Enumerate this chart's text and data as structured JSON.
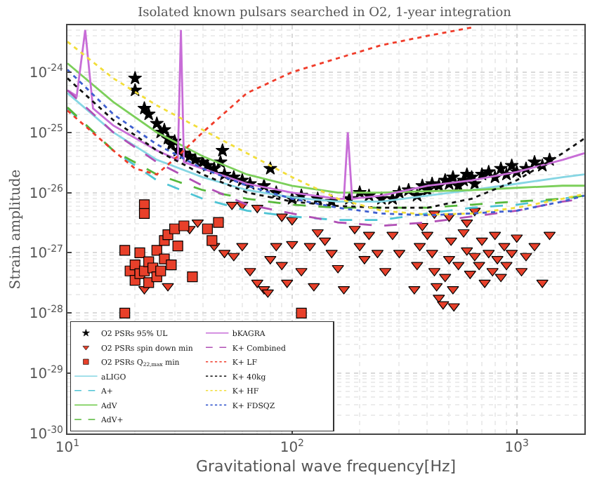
{
  "chart_data": {
    "type": "line",
    "title": "Isolated known pulsars searched in O2, 1-year integration",
    "xlabel": "Gravitational wave frequency[Hz]",
    "ylabel": "Strain amplitude",
    "log": "xy",
    "grid": true,
    "legend": "bottom left",
    "xlim": [
      10,
      2000
    ],
    "xticks": [
      {
        "value": 10,
        "label": "10$^{1}$"
      },
      {
        "value": 100,
        "label": "10$^{2}$"
      },
      {
        "value": 1000,
        "label": "10$^{3}$"
      }
    ],
    "ylim": [
      1e-30,
      6e-24
    ],
    "yticks": [
      {
        "value": 1e-30,
        "label": "10$^{-30}$"
      },
      {
        "value": 1e-29,
        "label": "10$^{-29}$"
      },
      {
        "value": 1e-28,
        "label": "10$^{-28}$"
      },
      {
        "value": 1e-27,
        "label": "10$^{-27}$"
      },
      {
        "value": 1e-26,
        "label": "10$^{-26}$"
      },
      {
        "value": 1e-25,
        "label": "10$^{-25}$"
      },
      {
        "value": 1e-24,
        "label": "10$^{-24}$"
      }
    ],
    "series": [
      {
        "name": "O2 PSRs 95% UL",
        "type": "scatter",
        "marker": "star",
        "color": "#000000",
        "x": [
          20,
          20,
          22,
          23,
          25,
          26,
          27,
          28,
          29,
          30,
          31,
          33,
          35,
          37,
          40,
          42,
          45,
          48,
          49,
          50,
          55,
          60,
          65,
          75,
          80,
          85,
          100,
          110,
          130,
          150,
          180,
          200,
          220,
          250,
          280,
          300,
          330,
          360,
          380,
          400,
          420,
          450,
          480,
          500,
          520,
          550,
          580,
          600,
          630,
          650,
          700,
          750,
          800,
          850,
          900,
          950,
          1000,
          1100,
          1200,
          1300,
          1400
        ],
        "values": [
          7.9e-25,
          5e-25,
          2.5e-25,
          2e-25,
          1.4e-25,
          1e-25,
          1.1e-25,
          7.9e-26,
          6.3e-26,
          7.1e-26,
          5e-26,
          4.5e-26,
          4e-26,
          3.5e-26,
          3.2e-26,
          2.8e-26,
          2.5e-26,
          3.2e-26,
          5e-26,
          2e-26,
          1.8e-26,
          1.6e-26,
          1.4e-26,
          1.3e-26,
          2.5e-26,
          1e-26,
          7.9e-27,
          8.9e-27,
          7.9e-27,
          7.1e-27,
          7.9e-27,
          1e-26,
          8.9e-27,
          7.9e-27,
          7.9e-27,
          1e-26,
          1.1e-26,
          8.9e-27,
          1.3e-26,
          1.1e-26,
          1.4e-26,
          1.3e-26,
          1.6e-26,
          1.4e-26,
          1.8e-26,
          1.3e-26,
          1.6e-26,
          2e-26,
          1.8e-26,
          1.4e-26,
          2e-26,
          2.2e-26,
          1.8e-26,
          2.5e-26,
          2e-26,
          2.8e-26,
          2.2e-26,
          2.5e-26,
          3.2e-26,
          2.8e-26,
          3.5e-26
        ]
      },
      {
        "name": "O2 PSRs spin down min",
        "type": "scatter",
        "marker": "triangle",
        "color": "#e8402a",
        "x": [
          22,
          28,
          35,
          38,
          45,
          50,
          54,
          55,
          60,
          60,
          65,
          70,
          70,
          75,
          78,
          80,
          85,
          90,
          90,
          95,
          100,
          100,
          110,
          120,
          125,
          130,
          140,
          150,
          160,
          170,
          190,
          200,
          210,
          220,
          240,
          260,
          280,
          300,
          350,
          360,
          370,
          380,
          400,
          420,
          430,
          430,
          440,
          450,
          470,
          480,
          500,
          500,
          510,
          520,
          525,
          550,
          580,
          600,
          600,
          620,
          650,
          650,
          680,
          700,
          720,
          750,
          780,
          800,
          820,
          850,
          880,
          900,
          950,
          1000,
          1050,
          1100,
          1200,
          1300,
          1400
        ],
        "values": [
          2.5e-28,
          2.8e-28,
          2.5e-27,
          3.2e-27,
          1.3e-27,
          1e-27,
          6.3e-27,
          8.9e-28,
          6.3e-27,
          1.3e-27,
          5e-28,
          5.6e-27,
          3.2e-28,
          2.5e-28,
          2.2e-28,
          7.9e-28,
          1.3e-27,
          4e-27,
          6.3e-28,
          3.2e-28,
          1.4e-27,
          3.5e-27,
          5e-28,
          1.3e-27,
          2.8e-28,
          2.2e-27,
          1.6e-27,
          1e-27,
          5.6e-28,
          2.5e-28,
          2.5e-27,
          1.3e-27,
          7.9e-28,
          2e-27,
          1e-27,
          5e-28,
          2e-27,
          1e-27,
          2.5e-28,
          6.3e-28,
          1.3e-27,
          2.8e-27,
          2e-27,
          1e-27,
          5e-28,
          4.5e-27,
          2.8e-28,
          1.8e-28,
          1.4e-28,
          4e-28,
          7.9e-28,
          4e-27,
          1.6e-27,
          2.5e-28,
          1.3e-28,
          6.3e-28,
          2.2e-27,
          1.1e-27,
          3.2e-27,
          4.5e-28,
          8.9e-28,
          5e-27,
          6.3e-28,
          1.6e-27,
          3.2e-28,
          1e-27,
          5e-28,
          2e-27,
          7.9e-28,
          4e-28,
          1.3e-27,
          6.3e-28,
          1e-27,
          1.8e-27,
          5e-28,
          8.9e-28,
          1.3e-27,
          3.2e-28,
          2e-27
        ]
      },
      {
        "name": "O2 PSRs Q$_{22,max}$ min",
        "type": "scatter",
        "marker": "square",
        "color": "#e8402a",
        "x": [
          18,
          18,
          19,
          20,
          20,
          21,
          21,
          22,
          22,
          22,
          23,
          23,
          24,
          25,
          25,
          26,
          27,
          27,
          28,
          29,
          30,
          31,
          33,
          36,
          42,
          44,
          47,
          110
        ],
        "values": [
          1.1e-27,
          1e-28,
          5e-28,
          6.3e-28,
          3.5e-28,
          1e-27,
          4.5e-28,
          6.3e-27,
          4.5e-27,
          5e-28,
          7.1e-28,
          3.2e-28,
          5.6e-28,
          4e-28,
          1.1e-27,
          5e-28,
          1.6e-27,
          7.9e-28,
          2e-27,
          6.3e-28,
          2.5e-27,
          1.3e-27,
          2.8e-27,
          4e-28,
          2.5e-27,
          1.6e-27,
          3.2e-27,
          1e-28
        ]
      },
      {
        "name": "aLIGO",
        "line_style": "solid",
        "color": "#86d6e3",
        "x": [
          10,
          16,
          25,
          40,
          63,
          100,
          160,
          250,
          400,
          630,
          1000,
          1600,
          2000
        ],
        "values": [
          4.5e-25,
          1e-25,
          3.5e-26,
          1.8e-26,
          1.1e-26,
          8.3e-27,
          7.1e-27,
          7.1e-27,
          8.9e-27,
          1.1e-26,
          1.4e-26,
          1.8e-26,
          2e-26
        ]
      },
      {
        "name": "A+",
        "line_style": "dashed",
        "color": "#4ec4d4",
        "x": [
          10,
          16,
          25,
          40,
          63,
          100,
          160,
          250,
          400,
          630,
          1000,
          1600,
          2000
        ],
        "values": [
          2.5e-25,
          5e-26,
          1.6e-26,
          7.9e-27,
          5e-27,
          4e-27,
          3.5e-27,
          3.5e-27,
          4.5e-27,
          5.6e-27,
          6.3e-27,
          7.9e-27,
          8.9e-27
        ]
      },
      {
        "name": "AdV",
        "line_style": "solid",
        "color": "#7ccf5a",
        "x": [
          10,
          16,
          25,
          40,
          63,
          100,
          160,
          250,
          400,
          630,
          1000,
          1600,
          2000
        ],
        "values": [
          1.4e-24,
          3.2e-25,
          1e-25,
          4e-26,
          2e-26,
          1.3e-26,
          1e-26,
          1e-26,
          1.05e-26,
          1.1e-26,
          1.2e-26,
          1.3e-26,
          1.3e-26
        ]
      },
      {
        "name": "AdV+",
        "line_style": "dashed",
        "color": "#56b83a",
        "x": [
          10,
          16,
          25,
          40,
          63,
          100,
          160,
          250,
          400,
          630,
          1000,
          1600,
          2000
        ],
        "values": [
          2.6e-25,
          5e-26,
          2e-26,
          1.1e-26,
          7.9e-27,
          6.3e-27,
          5.6e-27,
          5.6e-27,
          5.6e-27,
          6.3e-27,
          7.1e-27,
          7.9e-27,
          8.9e-27
        ]
      },
      {
        "name": "bKAGRA",
        "line_style": "solid",
        "color": "#c86dd7",
        "x": [
          10,
          11,
          12,
          13,
          16,
          25,
          31,
          32,
          33,
          40,
          63,
          100,
          160,
          170,
          177,
          185,
          250,
          400,
          630,
          1000,
          1600,
          2000
        ],
        "values": [
          5e-25,
          4e-25,
          5e-24,
          2.5e-25,
          1.3e-25,
          5e-26,
          3.5e-26,
          5e-24,
          3.2e-26,
          2.5e-26,
          1.4e-26,
          1e-26,
          7.9e-27,
          7.9e-27,
          1e-25,
          7.9e-27,
          8.9e-27,
          1.3e-26,
          1.6e-26,
          2.2e-26,
          3.5e-26,
          4.5e-26
        ]
      },
      {
        "name": "K+ Combined",
        "line_style": "dashed",
        "color": "#b04fb5",
        "x": [
          10,
          16,
          25,
          40,
          63,
          100,
          160,
          250,
          400,
          630,
          1000,
          1600,
          2000
        ],
        "values": [
          5e-25,
          1e-25,
          3.2e-26,
          1.3e-26,
          6.3e-27,
          4.5e-27,
          3.2e-27,
          2.8e-27,
          3.2e-27,
          4e-27,
          5e-27,
          7.1e-27,
          7.9e-27
        ]
      },
      {
        "name": "K+ LF",
        "line_style": "dotted",
        "color": "#f03c2a",
        "x": [
          10,
          16,
          20,
          25,
          32,
          40,
          63,
          100,
          160,
          250,
          400,
          630
        ],
        "values": [
          2.3e-25,
          5e-26,
          2.5e-26,
          2e-26,
          4.5e-26,
          1e-25,
          4.5e-25,
          1e-24,
          1.7e-24,
          2.8e-24,
          4e-24,
          5.5e-24
        ]
      },
      {
        "name": "K+ 40kg",
        "line_style": "dotted",
        "color": "#111111",
        "x": [
          10,
          16,
          25,
          40,
          63,
          100,
          160,
          250,
          400,
          630,
          1000,
          1600,
          2000
        ],
        "values": [
          7.9e-25,
          1.6e-25,
          5e-26,
          2e-26,
          1e-26,
          7.1e-27,
          6e-27,
          5.6e-27,
          5.6e-27,
          7.9e-27,
          1.6e-26,
          4.5e-26,
          7.9e-26
        ]
      },
      {
        "name": "K+ HF",
        "line_style": "dotted",
        "color": "#f2de3a",
        "x": [
          10,
          16,
          25,
          40,
          63,
          100,
          160,
          250,
          400,
          630,
          1000,
          1600,
          2000
        ],
        "values": [
          3.2e-24,
          7.9e-25,
          2.8e-25,
          1.1e-25,
          4.5e-26,
          1.8e-26,
          7.9e-27,
          5e-27,
          4.3e-27,
          4.5e-27,
          5.6e-27,
          7.9e-27,
          9.5e-27
        ]
      },
      {
        "name": "K+ FDSQZ",
        "line_style": "dotted",
        "color": "#3f5fd0",
        "x": [
          10,
          16,
          25,
          40,
          63,
          100,
          160,
          250,
          400,
          630,
          1000,
          1600,
          2000
        ],
        "values": [
          1.1e-24,
          2e-25,
          6.3e-26,
          2.5e-26,
          1.3e-26,
          7.9e-27,
          5.6e-27,
          4.5e-27,
          4.2e-27,
          4.5e-27,
          5e-27,
          7.1e-27,
          8.9e-27
        ]
      }
    ]
  }
}
